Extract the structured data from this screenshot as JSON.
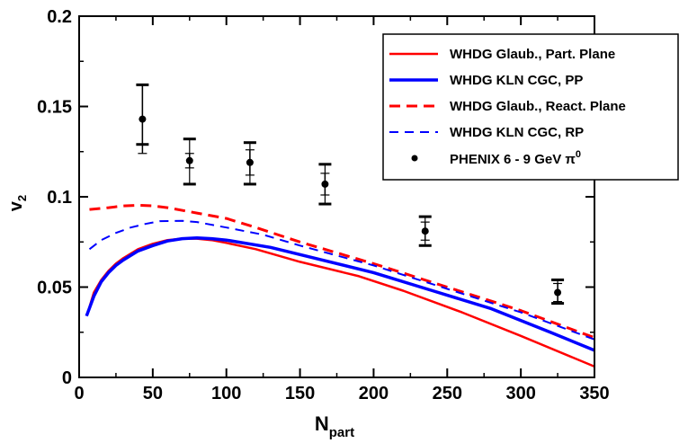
{
  "chart_data": {
    "type": "line",
    "title": "",
    "xlabel": "N",
    "xlabel_sub": "part",
    "ylabel": "v",
    "ylabel_sub": "2",
    "xlim": [
      0,
      350
    ],
    "ylim": [
      0,
      0.2
    ],
    "xticks": [
      0,
      50,
      100,
      150,
      200,
      250,
      300,
      350
    ],
    "yticks": [
      0,
      0.05,
      0.1,
      0.15,
      0.2
    ],
    "xtick_labels": [
      "0",
      "50",
      "100",
      "150",
      "200",
      "250",
      "300",
      "350"
    ],
    "ytick_labels": [
      "0",
      "0.05",
      "0.1",
      "0.15",
      "0.2"
    ],
    "legend_position": "top-right",
    "series": [
      {
        "name": "WHDG Glaub., Part. Plane",
        "color": "#ff0000",
        "style": "solid",
        "x": [
          7,
          10,
          15,
          20,
          25,
          30,
          40,
          50,
          60,
          70,
          80,
          90,
          100,
          120,
          150,
          190,
          220,
          260,
          300,
          350
        ],
        "y": [
          0.039,
          0.047,
          0.054,
          0.059,
          0.063,
          0.066,
          0.071,
          0.074,
          0.076,
          0.0768,
          0.0768,
          0.076,
          0.0745,
          0.071,
          0.064,
          0.056,
          0.048,
          0.036,
          0.023,
          0.006
        ]
      },
      {
        "name": "WHDG KLN CGC, PP",
        "color": "#0000ff",
        "style": "solid",
        "x": [
          5,
          10,
          15,
          20,
          25,
          30,
          40,
          50,
          60,
          70,
          80,
          90,
          100,
          130,
          160,
          200,
          240,
          280,
          320,
          350
        ],
        "y": [
          0.034,
          0.045,
          0.053,
          0.058,
          0.062,
          0.065,
          0.07,
          0.073,
          0.0755,
          0.0768,
          0.0772,
          0.0768,
          0.076,
          0.072,
          0.066,
          0.058,
          0.048,
          0.038,
          0.025,
          0.015
        ]
      },
      {
        "name": "WHDG Glaub., React. Plane",
        "color": "#ff0000",
        "style": "dashed",
        "x": [
          7,
          20,
          30,
          40,
          50,
          60,
          80,
          100,
          120,
          150,
          200,
          250,
          300,
          350
        ],
        "y": [
          0.093,
          0.094,
          0.095,
          0.0953,
          0.095,
          0.094,
          0.091,
          0.088,
          0.083,
          0.075,
          0.063,
          0.05,
          0.037,
          0.022
        ]
      },
      {
        "name": "WHDG KLN CGC, RP",
        "color": "#0000ff",
        "style": "dashed",
        "x": [
          7,
          15,
          25,
          35,
          45,
          55,
          70,
          80,
          100,
          125,
          150,
          200,
          250,
          300,
          350
        ],
        "y": [
          0.071,
          0.076,
          0.08,
          0.083,
          0.085,
          0.0865,
          0.0867,
          0.086,
          0.083,
          0.079,
          0.073,
          0.062,
          0.049,
          0.036,
          0.021
        ]
      }
    ],
    "points": {
      "name": "PHENIX 6 - 9 GeV π",
      "name_sup": "0",
      "color": "#000000",
      "x": [
        43,
        75,
        116,
        167,
        235,
        325
      ],
      "y": [
        0.143,
        0.12,
        0.119,
        0.107,
        0.081,
        0.047
      ],
      "stat_err": [
        0.019,
        0.004,
        0.007,
        0.006,
        0.005,
        0.005
      ],
      "sys_low": [
        0.129,
        0.107,
        0.107,
        0.096,
        0.073,
        0.041
      ],
      "sys_high": [
        0.162,
        0.132,
        0.13,
        0.118,
        0.089,
        0.054
      ]
    }
  }
}
